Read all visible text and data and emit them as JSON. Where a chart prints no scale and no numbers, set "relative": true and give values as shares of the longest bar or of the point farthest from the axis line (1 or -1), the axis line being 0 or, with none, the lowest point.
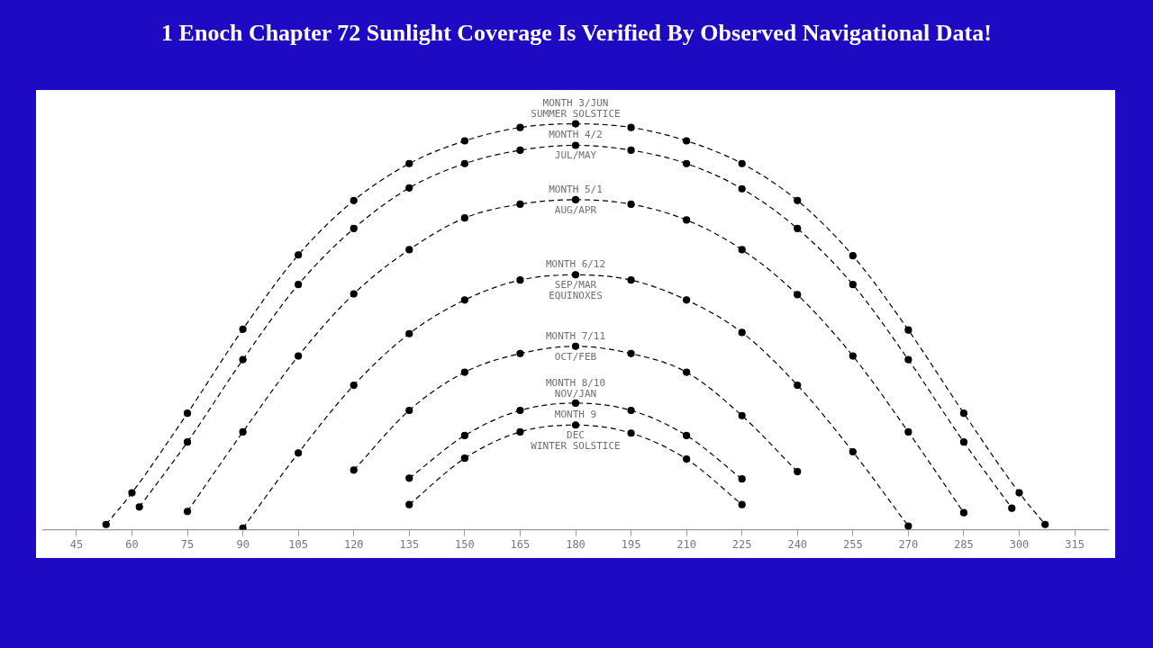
{
  "chart_data": {
    "type": "line",
    "title": "1 Enoch Chapter 72 Sunlight Coverage Is Verified By Observed Navigational Data!",
    "relative": true,
    "xlim": [
      36,
      324
    ],
    "xticks": [
      45,
      60,
      75,
      90,
      105,
      120,
      135,
      150,
      165,
      180,
      195,
      210,
      225,
      240,
      255,
      270,
      285,
      300,
      315
    ],
    "grid": false,
    "legend": false,
    "marker": "circle",
    "line_style": "dashed",
    "series": [
      {
        "color": "#000000",
        "x": [
          53,
          60,
          75,
          90,
          105,
          120,
          135,
          150,
          165,
          180,
          195,
          210,
          225,
          240,
          255,
          270,
          285,
          300,
          307
        ],
        "values": [
          0.013,
          0.091,
          0.287,
          0.494,
          0.677,
          0.811,
          0.902,
          0.958,
          0.991,
          1,
          0.991,
          0.958,
          0.902,
          0.811,
          0.675,
          0.492,
          0.287,
          0.091,
          0.013
        ]
      },
      {
        "color": "#000000",
        "x": [
          62,
          75,
          90,
          105,
          120,
          135,
          150,
          165,
          180,
          195,
          210,
          225,
          240,
          255,
          270,
          285,
          298
        ],
        "values": [
          0.056,
          0.216,
          0.419,
          0.604,
          0.742,
          0.842,
          0.902,
          0.935,
          0.947,
          0.935,
          0.902,
          0.84,
          0.742,
          0.604,
          0.419,
          0.216,
          0.053
        ]
      },
      {
        "color": "#000000",
        "x": [
          75,
          90,
          105,
          120,
          135,
          150,
          165,
          180,
          195,
          210,
          225,
          240,
          255,
          270,
          285
        ],
        "values": [
          0.045,
          0.241,
          0.428,
          0.581,
          0.69,
          0.768,
          0.802,
          0.813,
          0.802,
          0.763,
          0.69,
          0.579,
          0.428,
          0.241,
          0.042
        ]
      },
      {
        "color": "#000000",
        "x": [
          90,
          105,
          120,
          135,
          150,
          165,
          180,
          195,
          210,
          225,
          240,
          255,
          270
        ],
        "values": [
          0.004,
          0.189,
          0.356,
          0.483,
          0.566,
          0.615,
          0.628,
          0.615,
          0.566,
          0.486,
          0.356,
          0.192,
          0.009
        ]
      },
      {
        "color": "#000000",
        "x": [
          120,
          135,
          150,
          165,
          180,
          195,
          210,
          225,
          240
        ],
        "values": [
          0.147,
          0.294,
          0.388,
          0.434,
          0.452,
          0.434,
          0.388,
          0.281,
          0.143
        ]
      },
      {
        "color": "#000000",
        "x": [
          135,
          150,
          165,
          180,
          195,
          210,
          225
        ],
        "values": [
          0.127,
          0.232,
          0.294,
          0.312,
          0.294,
          0.232,
          0.125
        ]
      },
      {
        "color": "#000000",
        "x": [
          135,
          150,
          165,
          180,
          195,
          210,
          225
        ],
        "values": [
          0.062,
          0.176,
          0.241,
          0.258,
          0.238,
          0.174,
          0.062
        ]
      }
    ],
    "annotations": [
      "MONTH 3/JUN\nSUMMER SOLSTICE",
      "MONTH 4/2\nJUL/MAY",
      "MONTH 5/1\nAUG/APR",
      "MONTH 6/12\nSEP/MAR\nEQUINOXES",
      "MONTH 7/11\nOCT/FEB",
      "MONTH 8/10\nNOV/JAN",
      "MONTH 9\nDEC\nWINTER SOLSTICE"
    ]
  }
}
